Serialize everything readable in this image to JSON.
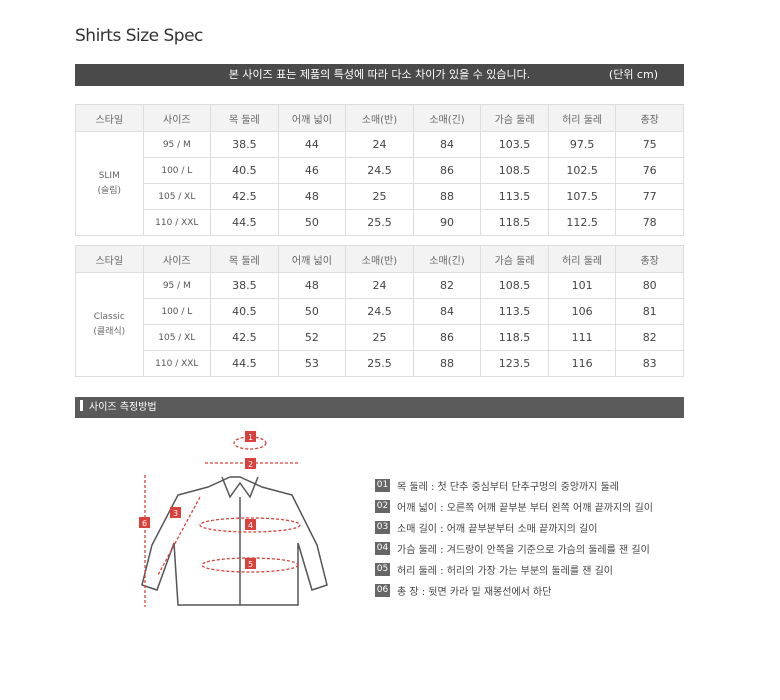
{
  "title": "Shirts Size Spec",
  "notice": {
    "message": "본 사이즈 표는 제품의 특성에 따라 다소 차이가 있을 수 있습니다.",
    "unit": "(단위 cm)"
  },
  "headers": [
    "스타일",
    "사이즈",
    "목 둘레",
    "어깨 넓이",
    "소매(반)",
    "소매(긴)",
    "가슴 둘레",
    "허리 둘레",
    "총장"
  ],
  "tables": [
    {
      "style": "SLIM",
      "style_kr": "(슬림)",
      "rows": [
        [
          "95 / M",
          "38.5",
          "44",
          "24",
          "84",
          "103.5",
          "97.5",
          "75"
        ],
        [
          "100 / L",
          "40.5",
          "46",
          "24.5",
          "86",
          "108.5",
          "102.5",
          "76"
        ],
        [
          "105 / XL",
          "42.5",
          "48",
          "25",
          "88",
          "113.5",
          "107.5",
          "77"
        ],
        [
          "110 / XXL",
          "44.5",
          "50",
          "25.5",
          "90",
          "118.5",
          "112.5",
          "78"
        ]
      ]
    },
    {
      "style": "Classic",
      "style_kr": "(클래식)",
      "rows": [
        [
          "95 / M",
          "38.5",
          "48",
          "24",
          "82",
          "108.5",
          "101",
          "80"
        ],
        [
          "100 / L",
          "40.5",
          "50",
          "24.5",
          "84",
          "113.5",
          "106",
          "81"
        ],
        [
          "105 / XL",
          "42.5",
          "52",
          "25",
          "86",
          "118.5",
          "111",
          "82"
        ],
        [
          "110 / XXL",
          "44.5",
          "53",
          "25.5",
          "88",
          "123.5",
          "116",
          "83"
        ]
      ]
    }
  ],
  "section_title": "사이즈 측정방법",
  "legend": [
    {
      "num": "01",
      "text": "목 둘레 : 첫 단추 중심부터 단추구멍의 중앙까지 둘레"
    },
    {
      "num": "02",
      "text": "어깨 넓이 : 오른쪽 어깨  끝부분 부터 왼쪽 어깨 끝까지의 길이"
    },
    {
      "num": "03",
      "text": "소매 길이 : 어깨 끝부분부터 소매 끝까지의 길이"
    },
    {
      "num": "04",
      "text": "가슴 둘레 : 겨드랑이 안쪽을 기준으로 가슴의 둘레를 잰 길이"
    },
    {
      "num": "05",
      "text": "허리 둘레 : 허리의 가장 가는 부분의 둘레를 잰 길이"
    },
    {
      "num": "06",
      "text": "총 장 : 뒷면 카라 밑 재봉선에서 하단"
    }
  ],
  "diagram_markers": [
    "1",
    "2",
    "3",
    "4",
    "5",
    "6"
  ],
  "colors": {
    "accent": "#d9413a",
    "header_bar": "#4a4a4a"
  }
}
